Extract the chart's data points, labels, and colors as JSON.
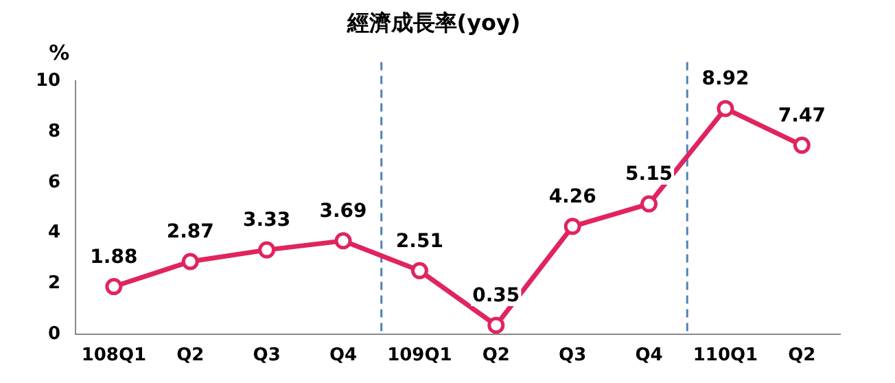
{
  "chart_data": {
    "type": "line",
    "title": "經濟成長率(yoy)",
    "ylabel": "%",
    "categories": [
      "108Q1",
      "Q2",
      "Q3",
      "Q4",
      "109Q1",
      "Q2",
      "Q3",
      "Q4",
      "110Q1",
      "Q2"
    ],
    "series": [
      {
        "color": "#e0245e",
        "values": [
          1.88,
          2.87,
          3.33,
          3.69,
          2.51,
          0.35,
          4.26,
          5.15,
          8.92,
          7.47
        ]
      }
    ],
    "ylim": [
      0,
      10
    ],
    "yticks": [
      0,
      2,
      4,
      6,
      8,
      10
    ],
    "grid": false,
    "legend": false,
    "marker": "circle",
    "line_style": "solid",
    "data_labels": true
  }
}
